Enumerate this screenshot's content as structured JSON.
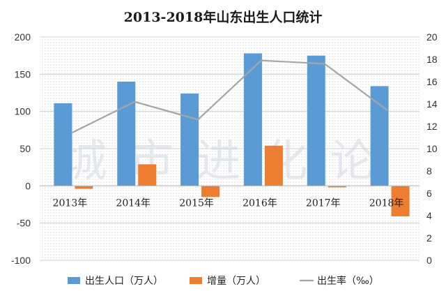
{
  "chart_data": {
    "type": "bar",
    "title": "2013-2018年山东出生人口统计",
    "categories": [
      "2013年",
      "2014年",
      "2015年",
      "2016年",
      "2017年",
      "2018年"
    ],
    "series": [
      {
        "name": "出生人口（万人）",
        "type": "bar",
        "axis": "left",
        "color": "#5b9bd5",
        "values": [
          111,
          140,
          124,
          178,
          175,
          134
        ]
      },
      {
        "name": "增量（万人）",
        "type": "bar",
        "axis": "left",
        "color": "#ed7d31",
        "values": [
          -4,
          29,
          -15,
          54,
          -2,
          -41
        ]
      },
      {
        "name": "出生率（‰）",
        "type": "line",
        "axis": "right",
        "color": "#a5a5a5",
        "values": [
          11.4,
          14.2,
          12.6,
          17.9,
          17.6,
          13.4
        ]
      }
    ],
    "ylim_left": [
      -100,
      200
    ],
    "yticks_left": [
      "200",
      "150",
      "100",
      "50",
      "0",
      "-50",
      "-100"
    ],
    "ylim_right": [
      0,
      20
    ],
    "yticks_right": [
      "20",
      "18",
      "16",
      "14",
      "12",
      "10",
      "8",
      "6",
      "4",
      "2",
      "0"
    ],
    "legend_position": "bottom",
    "grid": true
  },
  "watermark": "城市进化论"
}
